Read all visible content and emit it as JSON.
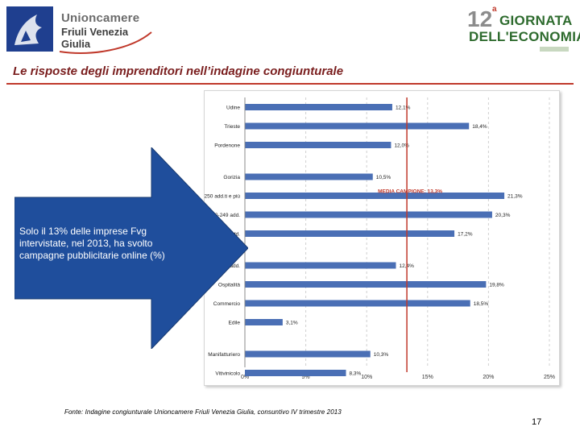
{
  "header": {
    "left_logo": {
      "line1": "Unioncamere",
      "line2": "Friuli Venezia Giulia"
    },
    "right_logo": {
      "number": "12",
      "superscript": "a",
      "line1": "GIORNATA",
      "line2": "DELL'ECONOMIA"
    },
    "title": "Le risposte degli imprenditori nell’indagine congiunturale",
    "accent_color": "#c0392b"
  },
  "callout": {
    "text": "Solo il 13% delle imprese Fvg intervistate, nel 2013, ha svolto campagne pubblicitarie online (%)",
    "color": "#1f4e9c"
  },
  "chart_data": {
    "type": "bar",
    "orientation": "horizontal",
    "bar_color": "#4a6fb5",
    "categories": [
      "Udine",
      "Trieste",
      "Pordenone",
      "Gorizia",
      "250 add.ti e più",
      "50-249 add.",
      "10-49 add.",
      "3-9 add.",
      "Ospitalità",
      "Commercio",
      "Edile",
      "Manifatturiero",
      "Vitivinicolo"
    ],
    "groups": [
      3,
      4,
      4,
      2
    ],
    "values": [
      12.1,
      18.4,
      12.0,
      10.5,
      21.3,
      20.3,
      17.2,
      12.4,
      19.8,
      18.5,
      3.1,
      10.3,
      8.3
    ],
    "value_labels": [
      "12,1%",
      "18,4%",
      "12,0%",
      "10,5%",
      "21,3%",
      "20,3%",
      "17,2%",
      "12,4%",
      "19,8%",
      "18,5%",
      "3,1%",
      "10,3%",
      "8,3%"
    ],
    "xlim": [
      0,
      25
    ],
    "x_ticks": [
      "0%",
      "5%",
      "10%",
      "15%",
      "20%",
      "25%"
    ],
    "reference_line": {
      "value": 13.3,
      "label": "MEDIA CAMPIONE: 13,3%",
      "color": "#c0392b"
    },
    "grid": "vertical dashed"
  },
  "footer": {
    "source": "Fonte: Indagine congiunturale Unioncamere Friuli Venezia Giulia, consuntivo IV trimestre 2013",
    "page_number": "17"
  }
}
